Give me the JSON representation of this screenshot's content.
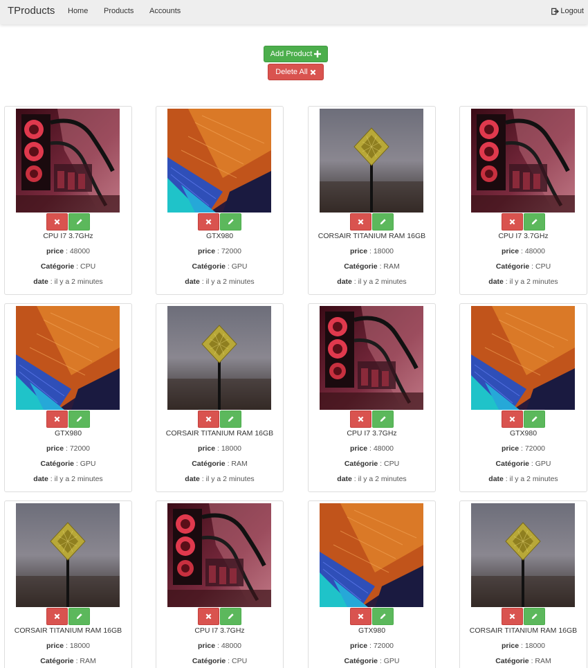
{
  "navbar": {
    "brand": "TProducts",
    "links": [
      "Home",
      "Products",
      "Accounts"
    ],
    "logout_label": "Logout"
  },
  "actions": {
    "add_label": "Add Product",
    "delete_all_label": "Delete All"
  },
  "labels": {
    "price": "price",
    "category": "Catégorie",
    "date": "date"
  },
  "colors": {
    "success": "#5cb85c",
    "danger": "#d9534f"
  },
  "products": [
    {
      "name": "CPU I7 3.7GHz",
      "price": "48000",
      "category": "CPU",
      "date": "il y a 2 minutes",
      "image": "cpu-cooling-rig"
    },
    {
      "name": "GTX980",
      "price": "72000",
      "category": "GPU",
      "date": "il y a 2 minutes",
      "image": "gpu-die"
    },
    {
      "name": "CORSAIR TITANIUM RAM 16GB",
      "price": "18000",
      "category": "RAM",
      "date": "il y a 2 minutes",
      "image": "chip-on-pin"
    },
    {
      "name": "CPU I7 3.7GHz",
      "price": "48000",
      "category": "CPU",
      "date": "il y a 2 minutes",
      "image": "cpu-cooling-rig"
    },
    {
      "name": "GTX980",
      "price": "72000",
      "category": "GPU",
      "date": "il y a 2 minutes",
      "image": "gpu-die"
    },
    {
      "name": "CORSAIR TITANIUM RAM 16GB",
      "price": "18000",
      "category": "RAM",
      "date": "il y a 2 minutes",
      "image": "chip-on-pin"
    },
    {
      "name": "CPU I7 3.7GHz",
      "price": "48000",
      "category": "CPU",
      "date": "il y a 2 minutes",
      "image": "cpu-cooling-rig"
    },
    {
      "name": "GTX980",
      "price": "72000",
      "category": "GPU",
      "date": "il y a 2 minutes",
      "image": "gpu-die"
    },
    {
      "name": "CORSAIR TITANIUM RAM 16GB",
      "price": "18000",
      "category": "RAM",
      "date": "",
      "image": "chip-on-pin"
    },
    {
      "name": "CPU I7 3.7GHz",
      "price": "48000",
      "category": "CPU",
      "date": "",
      "image": "cpu-cooling-rig"
    },
    {
      "name": "GTX980",
      "price": "72000",
      "category": "GPU",
      "date": "",
      "image": "gpu-die"
    },
    {
      "name": "CORSAIR TITANIUM RAM 16GB",
      "price": "18000",
      "category": "RAM",
      "date": "",
      "image": "chip-on-pin"
    }
  ]
}
